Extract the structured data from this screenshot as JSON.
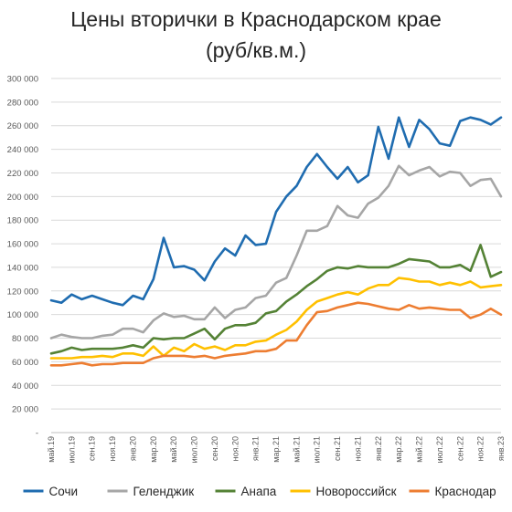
{
  "chart_data": {
    "type": "line",
    "title": [
      "Цены вторички в Краснодарском крае",
      "(руб/кв.м.)"
    ],
    "xlabel": "",
    "ylabel": "",
    "ylim": [
      0,
      300000
    ],
    "yticks": [
      0,
      20000,
      40000,
      60000,
      80000,
      100000,
      120000,
      140000,
      160000,
      180000,
      200000,
      220000,
      240000,
      260000,
      280000,
      300000
    ],
    "ytick_labels": [
      "-",
      "20 000",
      "40 000",
      "60 000",
      "80 000",
      "100 000",
      "120 000",
      "140 000",
      "160 000",
      "180 000",
      "200 000",
      "220 000",
      "240 000",
      "260 000",
      "280 000",
      "300 000"
    ],
    "grid": true,
    "legend_position": "bottom",
    "x_label_step": 2,
    "categories": [
      "май.19",
      "июн.19",
      "июл.19",
      "авг.19",
      "сен.19",
      "окт.19",
      "ноя.19",
      "дек.19",
      "янв.20",
      "фев.20",
      "мар.20",
      "апр.20",
      "май.20",
      "июн.20",
      "июл.20",
      "авг.20",
      "сен.20",
      "окт.20",
      "ноя.20",
      "дек.20",
      "янв.21",
      "фев.21",
      "мар.21",
      "апр.21",
      "май.21",
      "июн.21",
      "июл.21",
      "авг.21",
      "сен.21",
      "окт.21",
      "ноя.21",
      "дек.21",
      "янв.22",
      "фев.22",
      "мар.22",
      "апр.22",
      "май.22",
      "июн.22",
      "июл.22",
      "авг.22",
      "сен.22",
      "окт.22",
      "ноя.22",
      "дек.22",
      "янв.23"
    ],
    "series": [
      {
        "name": "Сочи",
        "color": "#1f6cb0",
        "values": [
          112000,
          110000,
          117000,
          113000,
          116000,
          113000,
          110000,
          108000,
          116000,
          113000,
          130000,
          165000,
          140000,
          141000,
          138000,
          129000,
          145000,
          156000,
          150000,
          167000,
          159000,
          160000,
          187000,
          200000,
          209000,
          225000,
          236000,
          225000,
          215000,
          225000,
          212000,
          218000,
          259000,
          232000,
          267000,
          242000,
          265000,
          257000,
          245000,
          243000,
          264000,
          267000,
          265000,
          261000,
          267000
        ]
      },
      {
        "name": "Геленджик",
        "color": "#a6a6a6",
        "values": [
          80000,
          83000,
          81000,
          80000,
          80000,
          82000,
          83000,
          88000,
          88000,
          85000,
          95000,
          101000,
          98000,
          99000,
          96000,
          96000,
          106000,
          97000,
          104000,
          106000,
          114000,
          116000,
          127000,
          131000,
          150000,
          171000,
          171000,
          175000,
          192000,
          184000,
          182000,
          194000,
          199000,
          209000,
          226000,
          218000,
          222000,
          225000,
          217000,
          221000,
          220000,
          209000,
          214000,
          215000,
          200000
        ]
      },
      {
        "name": "Анапа",
        "color": "#548235",
        "values": [
          67000,
          69000,
          72000,
          70000,
          71000,
          71000,
          71000,
          72000,
          74000,
          72000,
          80000,
          79000,
          80000,
          80000,
          84000,
          88000,
          79000,
          88000,
          91000,
          91000,
          93000,
          101000,
          103000,
          111000,
          117000,
          124000,
          130000,
          137000,
          140000,
          139000,
          141000,
          140000,
          140000,
          140000,
          143000,
          147000,
          146000,
          145000,
          140000,
          140000,
          142000,
          137000,
          159000,
          132000,
          136000
        ]
      },
      {
        "name": "Новороссийск",
        "color": "#ffc000",
        "values": [
          63000,
          63000,
          63000,
          64000,
          64000,
          65000,
          64000,
          67000,
          67000,
          65000,
          73000,
          65000,
          72000,
          69000,
          75000,
          71000,
          73000,
          70000,
          74000,
          74000,
          77000,
          78000,
          83000,
          87000,
          94000,
          104000,
          111000,
          114000,
          117000,
          119000,
          117000,
          122000,
          125000,
          125000,
          131000,
          130000,
          128000,
          128000,
          125000,
          127000,
          125000,
          128000,
          123000,
          124000,
          125000
        ]
      },
      {
        "name": "Краснодар",
        "color": "#ed7d31",
        "values": [
          57000,
          57000,
          58000,
          59000,
          57000,
          58000,
          58000,
          59000,
          59000,
          59000,
          63000,
          65000,
          65000,
          65000,
          64000,
          65000,
          63000,
          65000,
          66000,
          67000,
          69000,
          69000,
          71000,
          78000,
          78000,
          91000,
          102000,
          103000,
          106000,
          108000,
          110000,
          109000,
          107000,
          105000,
          104000,
          108000,
          105000,
          106000,
          105000,
          104000,
          104000,
          97000,
          100000,
          105000,
          100000
        ]
      }
    ]
  }
}
